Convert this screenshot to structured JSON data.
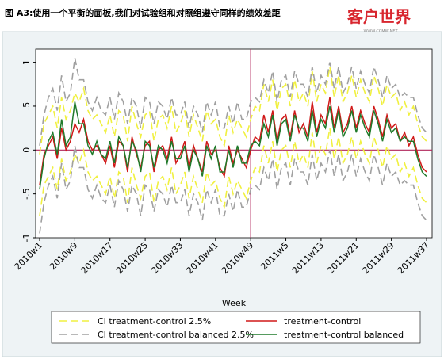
{
  "watermark": {
    "text": "客户世界",
    "url": "WWW.CCMW.NET"
  },
  "chart_data": {
    "type": "line",
    "title": "图 A3:使用一个平衡的面板,我们对试验组和对照组遵守同样的绩效差距",
    "x_label": "Week",
    "categories": [
      "2010w1",
      null,
      null,
      null,
      null,
      null,
      null,
      null,
      "2010w9",
      null,
      null,
      null,
      null,
      null,
      null,
      null,
      "2010w17",
      null,
      null,
      null,
      null,
      null,
      null,
      null,
      "2010w25",
      null,
      null,
      null,
      null,
      null,
      null,
      null,
      "2010w33",
      null,
      null,
      null,
      null,
      null,
      null,
      null,
      "2010w41",
      null,
      null,
      null,
      null,
      null,
      null,
      null,
      "2010w49",
      null,
      null,
      null,
      null,
      null,
      null,
      null,
      "2011w5",
      null,
      null,
      null,
      null,
      null,
      null,
      null,
      "2011w13",
      null,
      null,
      null,
      null,
      null,
      null,
      null,
      "2011w21",
      null,
      null,
      null,
      null,
      null,
      null,
      null,
      "2011w29",
      null,
      null,
      null,
      null,
      null,
      null,
      null,
      "2011w37"
    ],
    "ylim": [
      -1,
      1.15
    ],
    "yticks": [
      {
        "value": -1,
        "label": "-1"
      },
      {
        "value": -0.5,
        "label": "-.5"
      },
      0,
      {
        "value": 0.5,
        "label": ".5"
      },
      1
    ],
    "vline": "2010w49",
    "hline": 0,
    "reference_color": "#b0245a",
    "series": [
      {
        "name": "CI treatment-control 2.5%",
        "color": "#f0f040",
        "dashed": true,
        "upper": [
          -0.05,
          0.3,
          0.4,
          0.5,
          0.25,
          0.6,
          0.35,
          0.45,
          0.65,
          0.55,
          0.7,
          0.45,
          0.35,
          0.4,
          0.3,
          0.2,
          0.4,
          0.15,
          0.45,
          0.4,
          0.1,
          0.5,
          0.3,
          0.15,
          0.4,
          0.45,
          0.1,
          0.35,
          0.4,
          0.25,
          0.5,
          0.2,
          0.3,
          0.45,
          0.15,
          0.4,
          0.25,
          0.1,
          0.45,
          0.3,
          0.35,
          0.15,
          0.05,
          0.4,
          0.2,
          0.35,
          0.25,
          0.15,
          0.35,
          0.5,
          0.45,
          0.75,
          0.55,
          0.8,
          0.45,
          0.7,
          0.75,
          0.5,
          0.8,
          0.55,
          0.65,
          0.5,
          0.9,
          0.55,
          0.75,
          0.65,
          0.95,
          0.6,
          0.85,
          0.55,
          0.65,
          0.85,
          0.6,
          0.8,
          0.65,
          0.55,
          0.85,
          0.7,
          0.5,
          0.75,
          0.6,
          0.65,
          0.45,
          0.55,
          0.4,
          0.5,
          0.3,
          0.15,
          0.1
        ],
        "lower": [
          -0.75,
          -0.4,
          -0.3,
          -0.2,
          -0.45,
          -0.1,
          -0.35,
          -0.25,
          -0.05,
          -0.15,
          0.0,
          -0.25,
          -0.35,
          -0.3,
          -0.4,
          -0.5,
          -0.3,
          -0.55,
          -0.25,
          -0.3,
          -0.6,
          -0.2,
          -0.4,
          -0.55,
          -0.3,
          -0.25,
          -0.6,
          -0.35,
          -0.3,
          -0.45,
          -0.2,
          -0.5,
          -0.4,
          -0.25,
          -0.55,
          -0.3,
          -0.45,
          -0.6,
          -0.25,
          -0.4,
          -0.35,
          -0.55,
          -0.65,
          -0.3,
          -0.5,
          -0.35,
          -0.45,
          -0.55,
          -0.35,
          -0.2,
          -0.25,
          0.05,
          -0.15,
          0.1,
          -0.25,
          0.0,
          0.05,
          -0.2,
          0.1,
          -0.15,
          -0.05,
          -0.2,
          0.2,
          -0.15,
          0.05,
          -0.05,
          0.25,
          -0.1,
          0.15,
          -0.15,
          -0.05,
          0.15,
          -0.1,
          0.1,
          -0.05,
          -0.15,
          0.15,
          0.0,
          -0.2,
          0.05,
          -0.1,
          -0.05,
          -0.25,
          -0.15,
          -0.3,
          -0.2,
          -0.4,
          -0.55,
          -0.6
        ]
      },
      {
        "name": "treatment-control",
        "color": "#d01818",
        "dashed": false,
        "values": [
          -0.4,
          -0.05,
          0.05,
          0.15,
          -0.1,
          0.25,
          0.0,
          0.1,
          0.3,
          0.2,
          0.35,
          0.1,
          0.0,
          0.05,
          -0.05,
          -0.15,
          0.05,
          -0.2,
          0.1,
          0.05,
          -0.25,
          0.15,
          -0.05,
          -0.2,
          0.05,
          0.1,
          -0.25,
          0.0,
          0.05,
          -0.1,
          0.15,
          -0.15,
          -0.05,
          0.1,
          -0.2,
          0.05,
          -0.1,
          -0.25,
          0.1,
          -0.05,
          0.0,
          -0.2,
          -0.3,
          0.05,
          -0.15,
          0.0,
          -0.1,
          -0.2,
          0.0,
          0.15,
          0.1,
          0.4,
          0.2,
          0.45,
          0.1,
          0.35,
          0.4,
          0.15,
          0.45,
          0.2,
          0.3,
          0.15,
          0.55,
          0.2,
          0.4,
          0.3,
          0.6,
          0.25,
          0.5,
          0.2,
          0.3,
          0.5,
          0.25,
          0.45,
          0.3,
          0.2,
          0.5,
          0.35,
          0.15,
          0.4,
          0.25,
          0.3,
          0.1,
          0.2,
          0.05,
          0.15,
          -0.05,
          -0.2,
          -0.25
        ]
      },
      {
        "name": "CI treatment-control balanced 2.5%",
        "color": "#a0a0a0",
        "dashed": true,
        "upper": [
          0.05,
          0.4,
          0.6,
          0.7,
          0.45,
          0.85,
          0.55,
          0.65,
          1.05,
          0.8,
          0.8,
          0.55,
          0.45,
          0.6,
          0.45,
          0.4,
          0.6,
          0.35,
          0.65,
          0.55,
          0.3,
          0.6,
          0.5,
          0.25,
          0.6,
          0.55,
          0.3,
          0.55,
          0.5,
          0.35,
          0.6,
          0.4,
          0.4,
          0.55,
          0.25,
          0.5,
          0.4,
          0.2,
          0.55,
          0.4,
          0.55,
          0.25,
          0.25,
          0.5,
          0.3,
          0.55,
          0.35,
          0.35,
          0.55,
          0.6,
          0.55,
          0.8,
          0.65,
          0.9,
          0.55,
          0.8,
          0.85,
          0.6,
          0.9,
          0.75,
          0.75,
          0.6,
          0.95,
          0.65,
          0.85,
          0.75,
          1.0,
          0.7,
          0.95,
          0.65,
          0.75,
          0.95,
          0.7,
          0.9,
          0.75,
          0.65,
          0.95,
          0.8,
          0.6,
          0.85,
          0.7,
          0.75,
          0.6,
          0.65,
          0.6,
          0.6,
          0.4,
          0.25,
          0.2
        ],
        "lower": [
          -0.95,
          -0.6,
          -0.4,
          -0.3,
          -0.55,
          -0.15,
          -0.45,
          -0.35,
          0.05,
          -0.2,
          -0.2,
          -0.45,
          -0.55,
          -0.4,
          -0.55,
          -0.6,
          -0.4,
          -0.65,
          -0.35,
          -0.45,
          -0.7,
          -0.4,
          -0.5,
          -0.75,
          -0.4,
          -0.45,
          -0.7,
          -0.45,
          -0.5,
          -0.65,
          -0.4,
          -0.6,
          -0.6,
          -0.45,
          -0.75,
          -0.5,
          -0.6,
          -0.8,
          -0.45,
          -0.6,
          -0.45,
          -0.75,
          -0.75,
          -0.5,
          -0.7,
          -0.45,
          -0.65,
          -0.65,
          -0.45,
          -0.4,
          -0.45,
          -0.2,
          -0.35,
          -0.1,
          -0.45,
          -0.2,
          -0.15,
          -0.4,
          -0.1,
          -0.25,
          -0.25,
          -0.4,
          -0.05,
          -0.35,
          -0.15,
          -0.25,
          0.0,
          -0.3,
          -0.05,
          -0.35,
          -0.25,
          -0.05,
          -0.3,
          -0.1,
          -0.25,
          -0.35,
          -0.05,
          -0.2,
          -0.4,
          -0.15,
          -0.3,
          -0.25,
          -0.4,
          -0.35,
          -0.4,
          -0.4,
          -0.6,
          -0.75,
          -0.8
        ]
      },
      {
        "name": "treatment-control balanced",
        "color": "#1f7a2a",
        "dashed": false,
        "values": [
          -0.45,
          -0.1,
          0.1,
          0.2,
          -0.05,
          0.35,
          0.05,
          0.15,
          0.55,
          0.3,
          0.3,
          0.05,
          -0.05,
          0.1,
          -0.05,
          -0.1,
          0.1,
          -0.15,
          0.15,
          0.05,
          -0.2,
          0.1,
          0.0,
          -0.25,
          0.1,
          0.05,
          -0.2,
          0.05,
          0.0,
          -0.15,
          0.1,
          -0.1,
          -0.1,
          0.05,
          -0.25,
          0.0,
          -0.1,
          -0.3,
          0.05,
          -0.1,
          0.05,
          -0.25,
          -0.25,
          0.0,
          -0.2,
          0.05,
          -0.15,
          -0.15,
          0.05,
          0.1,
          0.05,
          0.3,
          0.15,
          0.4,
          0.05,
          0.3,
          0.35,
          0.1,
          0.4,
          0.25,
          0.25,
          0.1,
          0.45,
          0.15,
          0.35,
          0.25,
          0.5,
          0.2,
          0.45,
          0.15,
          0.25,
          0.45,
          0.2,
          0.4,
          0.25,
          0.15,
          0.45,
          0.3,
          0.1,
          0.35,
          0.2,
          0.25,
          0.1,
          0.15,
          0.1,
          0.1,
          -0.1,
          -0.25,
          -0.3
        ]
      }
    ]
  }
}
